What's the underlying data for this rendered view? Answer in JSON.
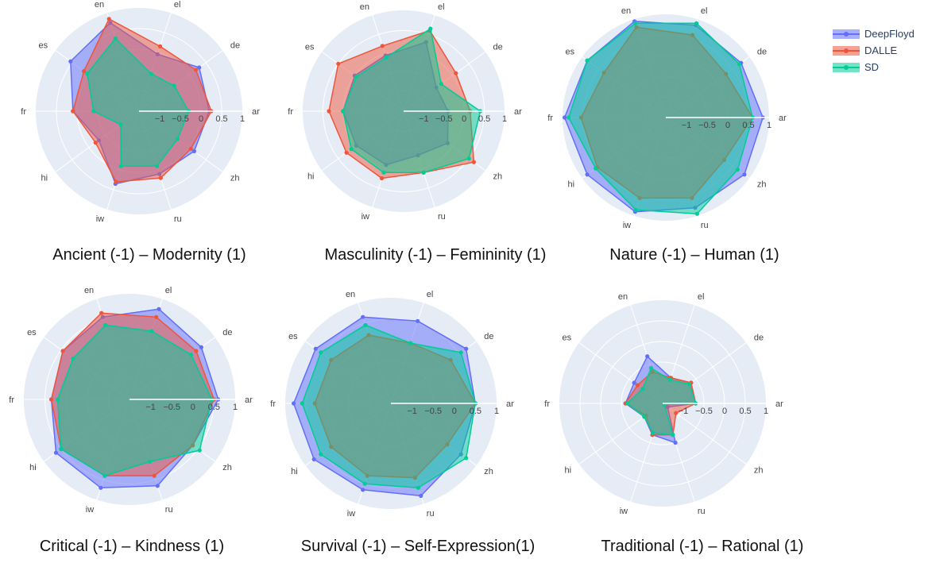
{
  "legend": [
    "DeepFloyd",
    "DALLE",
    "SD"
  ],
  "colors": {
    "DeepFloyd": "#636efa",
    "DALLE": "#ef553b",
    "SD": "#00cc96",
    "polar_bg": "#e5ecf6",
    "axis_text": "#444444"
  },
  "chart_data": [
    {
      "type": "radar",
      "title": "Ancient (-1) – Modernity (1)",
      "axes": [
        "ar",
        "de",
        "el",
        "en",
        "es",
        "fr",
        "hi",
        "iw",
        "ru",
        "zh"
      ],
      "radial_range": [
        -1.5,
        1
      ],
      "radial_ticks": [
        "−1",
        "−0.5",
        "0",
        "0.5",
        "1"
      ],
      "series": [
        {
          "name": "DeepFloyd",
          "values": [
            0.2,
            0.3,
            -0.05,
            0.75,
            0.55,
            0.1,
            -0.3,
            0.35,
            0.1,
            0.15
          ]
        },
        {
          "name": "DALLE",
          "values": [
            0.25,
            0.2,
            0.15,
            0.85,
            0.15,
            0.1,
            -0.2,
            0.3,
            0.2,
            0.05
          ]
        },
        {
          "name": "SD",
          "values": [
            -0.3,
            -0.45,
            -0.55,
            0.35,
            0.05,
            -0.4,
            -0.95,
            -0.1,
            -0.1,
            -0.35
          ]
        }
      ]
    },
    {
      "type": "radar",
      "title": "Masculinity (-1) – Femininity (1)",
      "axes": [
        "ar",
        "de",
        "el",
        "en",
        "es",
        "fr",
        "hi",
        "iw",
        "ru",
        "zh"
      ],
      "radial_range": [
        -1.5,
        1
      ],
      "radial_ticks": [
        "−1",
        "−0.5",
        "0",
        "0.5",
        "1"
      ],
      "series": [
        {
          "name": "DeepFloyd",
          "values": [
            -0.4,
            -0.5,
            0.3,
            -0.05,
            0.0,
            0.0,
            -0.05,
            -0.1,
            -0.35,
            -0.15
          ]
        },
        {
          "name": "DALLE",
          "values": [
            0.15,
            0.1,
            0.6,
            0.2,
            0.5,
            0.35,
            0.25,
            0.25,
            0.1,
            0.65
          ]
        },
        {
          "name": "SD",
          "values": [
            0.4,
            -0.35,
            0.65,
            -0.1,
            -0.05,
            0.0,
            0.1,
            0.1,
            0.1,
            0.5
          ]
        }
      ]
    },
    {
      "type": "radar",
      "title": "Nature (-1) – Human (1)",
      "axes": [
        "ar",
        "de",
        "el",
        "en",
        "es",
        "fr",
        "hi",
        "iw",
        "ru",
        "zh"
      ],
      "radial_range": [
        -1.5,
        1
      ],
      "radial_ticks": [
        "−1",
        "−0.5",
        "0",
        "0.5",
        "1"
      ],
      "series": [
        {
          "name": "DeepFloyd",
          "values": [
            0.85,
            0.75,
            0.85,
            0.95,
            0.85,
            0.95,
            0.85,
            0.9,
            0.8,
            0.85
          ]
        },
        {
          "name": "DALLE",
          "values": [
            0.6,
            0.3,
            0.6,
            0.8,
            0.35,
            0.55,
            0.55,
            0.55,
            0.55,
            0.25
          ]
        },
        {
          "name": "SD",
          "values": [
            0.6,
            0.7,
            0.9,
            0.9,
            0.85,
            0.85,
            0.6,
            0.85,
            0.95,
            0.65
          ]
        }
      ]
    },
    {
      "type": "radar",
      "title": "Critical (-1) – Kindness (1)",
      "axes": [
        "ar",
        "de",
        "el",
        "en",
        "es",
        "fr",
        "hi",
        "iw",
        "ru",
        "zh"
      ],
      "radial_range": [
        -1.5,
        1
      ],
      "radial_ticks": [
        "−1",
        "−0.5",
        "0",
        "0.5",
        "1"
      ],
      "series": [
        {
          "name": "DeepFloyd",
          "values": [
            0.6,
            0.6,
            0.75,
            0.55,
            0.45,
            0.35,
            0.65,
            0.7,
            0.65,
            0.35
          ]
        },
        {
          "name": "DALLE",
          "values": [
            0.5,
            0.45,
            0.55,
            0.65,
            0.45,
            0.35,
            0.5,
            0.4,
            0.4,
            0.35
          ]
        },
        {
          "name": "SD",
          "values": [
            0.45,
            0.3,
            0.2,
            0.35,
            0.15,
            0.2,
            0.5,
            0.4,
            0.05,
            0.55
          ]
        }
      ]
    },
    {
      "type": "radar",
      "title": "Survival (-1) – Self-Expression(1)",
      "axes": [
        "ar",
        "de",
        "el",
        "en",
        "es",
        "fr",
        "hi",
        "iw",
        "ru",
        "zh"
      ],
      "radial_range": [
        -1.5,
        1
      ],
      "radial_ticks": [
        "−1",
        "−0.5",
        "0",
        "0.5",
        "1"
      ],
      "series": [
        {
          "name": "DeepFloyd",
          "values": [
            0.5,
            0.7,
            0.55,
            0.65,
            0.7,
            0.8,
            0.75,
            0.65,
            0.8,
            0.55
          ]
        },
        {
          "name": "DALLE",
          "values": [
            0.5,
            0.25,
            0.0,
            0.2,
            0.25,
            0.3,
            0.25,
            0.3,
            0.35,
            0.15
          ]
        },
        {
          "name": "SD",
          "values": [
            0.5,
            0.55,
            0.0,
            0.45,
            0.55,
            0.6,
            0.55,
            0.5,
            0.6,
            0.7
          ]
        }
      ]
    },
    {
      "type": "radar",
      "title": "Traditional (-1) – Rational (1)",
      "axes": [
        "ar",
        "de",
        "el",
        "en",
        "es",
        "fr",
        "hi",
        "iw",
        "ru",
        "zh"
      ],
      "radial_range": [
        -1.5,
        1
      ],
      "radial_ticks": [
        "−1",
        "−0.5",
        "0",
        "0.5",
        "1"
      ],
      "series": [
        {
          "name": "DeepFloyd",
          "values": [
            -0.7,
            -0.65,
            -0.85,
            -0.3,
            -0.65,
            -0.6,
            -0.95,
            -0.7,
            -0.5,
            -1.35
          ]
        },
        {
          "name": "DALLE",
          "values": [
            -0.7,
            -0.65,
            -0.85,
            -0.7,
            -0.75,
            -0.6,
            -1.0,
            -0.7,
            -0.7,
            -1.1
          ]
        },
        {
          "name": "SD",
          "values": [
            -0.7,
            -0.7,
            -0.9,
            -0.6,
            -0.9,
            -0.65,
            -0.95,
            -0.75,
            -0.7,
            -1.45
          ]
        }
      ]
    }
  ]
}
